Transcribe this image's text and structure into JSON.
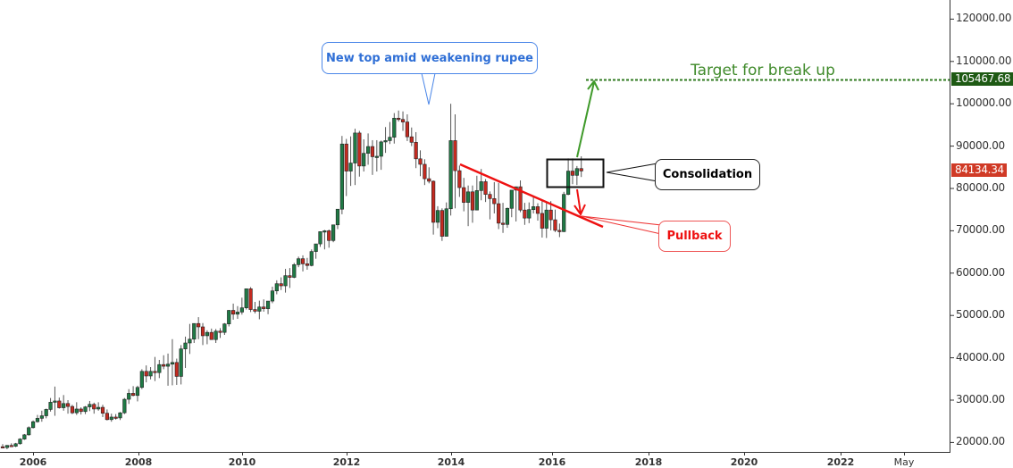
{
  "chart_data": {
    "type": "candlestick",
    "title": "",
    "xlabel": "",
    "ylabel": "",
    "ylim": [
      18000,
      124000
    ],
    "grid": false,
    "x_ticks": [
      "2006",
      "2008",
      "2010",
      "2012",
      "2014",
      "2016",
      "2018",
      "2020",
      "2022",
      "May"
    ],
    "y_ticks": [
      "120000.00",
      "110000.00",
      "100000.00",
      "90000.00",
      "80000.00",
      "70000.00",
      "60000.00",
      "50000.00",
      "40000.00",
      "30000.00",
      "20000.00"
    ],
    "period": "monthly",
    "start": "2005-06",
    "candles": [
      [
        19000,
        19600,
        18600,
        18800
      ],
      [
        18800,
        19400,
        18400,
        19300
      ],
      [
        19300,
        19800,
        19000,
        19100
      ],
      [
        19100,
        19900,
        18900,
        19700
      ],
      [
        19700,
        21000,
        19500,
        20800
      ],
      [
        20800,
        22000,
        20600,
        21800
      ],
      [
        21800,
        23800,
        21600,
        23500
      ],
      [
        23500,
        25200,
        23300,
        24900
      ],
      [
        24900,
        26500,
        24700,
        25700
      ],
      [
        25700,
        27500,
        24900,
        26300
      ],
      [
        26300,
        28000,
        25700,
        27800
      ],
      [
        27800,
        30500,
        27300,
        29500
      ],
      [
        29500,
        33200,
        26300,
        29800
      ],
      [
        29800,
        30600,
        28000,
        28200
      ],
      [
        28200,
        31200,
        27500,
        29200
      ],
      [
        29200,
        30000,
        26800,
        28500
      ],
      [
        28500,
        28900,
        26700,
        27000
      ],
      [
        27000,
        29500,
        26500,
        27900
      ],
      [
        27900,
        28300,
        26600,
        27300
      ],
      [
        27300,
        28600,
        26700,
        28400
      ],
      [
        28400,
        29800,
        27400,
        29000
      ],
      [
        29000,
        29400,
        26800,
        27900
      ],
      [
        27900,
        29500,
        27500,
        28300
      ],
      [
        28300,
        28900,
        26000,
        26900
      ],
      [
        26900,
        27800,
        25200,
        25400
      ],
      [
        25400,
        26800,
        24900,
        26000
      ],
      [
        26000,
        26700,
        25400,
        25800
      ],
      [
        25800,
        27200,
        25300,
        27000
      ],
      [
        27000,
        30500,
        26700,
        30200
      ],
      [
        30200,
        32600,
        29100,
        31600
      ],
      [
        31600,
        33300,
        30900,
        31100
      ],
      [
        31100,
        33400,
        29700,
        33000
      ],
      [
        33000,
        37300,
        32600,
        36800
      ],
      [
        36800,
        38200,
        34200,
        35700
      ],
      [
        35700,
        37800,
        34900,
        36800
      ],
      [
        36800,
        40200,
        34500,
        36500
      ],
      [
        36500,
        39500,
        35200,
        38400
      ],
      [
        38400,
        40600,
        37300,
        38000
      ],
      [
        38000,
        41000,
        33400,
        38500
      ],
      [
        38500,
        44400,
        33500,
        38900
      ],
      [
        38900,
        39800,
        33600,
        35600
      ],
      [
        35600,
        43000,
        33700,
        42100
      ],
      [
        42100,
        45000,
        37600,
        43500
      ],
      [
        43500,
        48000,
        40900,
        44400
      ],
      [
        44400,
        47400,
        43500,
        48100
      ],
      [
        48100,
        49600,
        44400,
        47300
      ],
      [
        47300,
        48200,
        43000,
        45200
      ],
      [
        45200,
        46500,
        43200,
        46000
      ],
      [
        46000,
        46900,
        44300,
        44300
      ],
      [
        44300,
        46800,
        43500,
        46300
      ],
      [
        46300,
        47000,
        44700,
        46000
      ],
      [
        46000,
        48200,
        45400,
        48000
      ],
      [
        48000,
        51300,
        47400,
        51200
      ],
      [
        51200,
        52800,
        49000,
        50300
      ],
      [
        50300,
        52200,
        49200,
        50800
      ],
      [
        50800,
        54200,
        50200,
        51800
      ],
      [
        51800,
        56300,
        51400,
        56300
      ],
      [
        56300,
        56700,
        50800,
        51400
      ],
      [
        51400,
        53200,
        50500,
        51000
      ],
      [
        51000,
        53500,
        49100,
        52000
      ],
      [
        52000,
        53800,
        50900,
        51600
      ],
      [
        51600,
        53200,
        50300,
        53400
      ],
      [
        53400,
        56800,
        52900,
        55800
      ],
      [
        55800,
        58300,
        55000,
        57500
      ],
      [
        57500,
        59000,
        56000,
        57000
      ],
      [
        57000,
        61000,
        55400,
        59400
      ],
      [
        59400,
        61200,
        56500,
        59000
      ],
      [
        59000,
        62400,
        58800,
        62000
      ],
      [
        62000,
        63900,
        61400,
        63400
      ],
      [
        63400,
        64200,
        60400,
        62200
      ],
      [
        62200,
        63600,
        60800,
        61800
      ],
      [
        61800,
        65600,
        61600,
        65100
      ],
      [
        65100,
        66300,
        63400,
        66900
      ],
      [
        66900,
        69000,
        66200,
        69800
      ],
      [
        69800,
        70200,
        65600,
        70000
      ],
      [
        70000,
        70300,
        66000,
        67700
      ],
      [
        67700,
        71200,
        67300,
        71400
      ],
      [
        71400,
        73400,
        70400,
        75100
      ],
      [
        75100,
        92400,
        73900,
        90500
      ],
      [
        90500,
        91700,
        78200,
        84100
      ],
      [
        84100,
        92300,
        80600,
        86000
      ],
      [
        86000,
        94100,
        80800,
        93100
      ],
      [
        93100,
        93600,
        82800,
        85300
      ],
      [
        85300,
        91600,
        84000,
        88300
      ],
      [
        88300,
        93000,
        85600,
        89900
      ],
      [
        89900,
        91400,
        83200,
        87500
      ],
      [
        87500,
        91400,
        84000,
        87600
      ],
      [
        87600,
        91300,
        84400,
        91000
      ],
      [
        91000,
        94500,
        88400,
        91300
      ],
      [
        91300,
        95700,
        90500,
        92100
      ],
      [
        92100,
        97800,
        90600,
        96600
      ],
      [
        96600,
        98400,
        95800,
        96300
      ],
      [
        96300,
        98200,
        93600,
        95700
      ],
      [
        95700,
        97500,
        91200,
        92200
      ],
      [
        92200,
        94400,
        90000,
        90900
      ],
      [
        90900,
        93300,
        84800,
        87000
      ],
      [
        87000,
        89000,
        82900,
        85700
      ],
      [
        85700,
        86900,
        80800,
        82300
      ],
      [
        82300,
        85000,
        81200,
        81700
      ],
      [
        81700,
        81900,
        69100,
        72000
      ],
      [
        72000,
        75800,
        70600,
        74800
      ],
      [
        74800,
        75300,
        67600,
        68700
      ],
      [
        68700,
        76700,
        70700,
        75200
      ],
      [
        75200,
        100000,
        73600,
        91300
      ],
      [
        91300,
        97500,
        75300,
        84200
      ],
      [
        84200,
        85400,
        78000,
        80200
      ],
      [
        80200,
        82500,
        74600,
        76700
      ],
      [
        76700,
        80700,
        71100,
        79200
      ],
      [
        79200,
        80700,
        71900,
        74900
      ],
      [
        74900,
        83000,
        74900,
        79500
      ],
      [
        79500,
        84600,
        77200,
        81600
      ],
      [
        81600,
        82200,
        76800,
        78600
      ],
      [
        78600,
        79300,
        72700,
        77600
      ],
      [
        77600,
        81500,
        74100,
        76400
      ],
      [
        76400,
        81300,
        70400,
        71800
      ],
      [
        71800,
        76600,
        69500,
        71500
      ],
      [
        71500,
        75500,
        70700,
        75300
      ],
      [
        75300,
        78800,
        73200,
        79600
      ],
      [
        79600,
        79900,
        72200,
        80400
      ],
      [
        80400,
        81900,
        74400,
        74900
      ],
      [
        74900,
        76600,
        71400,
        73000
      ],
      [
        73000,
        76700,
        71800,
        75000
      ],
      [
        75000,
        78300,
        74100,
        75700
      ],
      [
        75700,
        76500,
        72400,
        74100
      ],
      [
        74100,
        77000,
        68400,
        70600
      ],
      [
        70600,
        76600,
        68300,
        74900
      ],
      [
        74900,
        77000,
        70100,
        72600
      ],
      [
        72600,
        75000,
        69700,
        70100
      ],
      [
        70100,
        71700,
        68500,
        69800
      ],
      [
        69800,
        79200,
        69700,
        78600
      ],
      [
        78600,
        87100,
        78400,
        84100
      ],
      [
        84100,
        87100,
        81000,
        83100
      ],
      [
        83100,
        85300,
        80800,
        84700
      ],
      [
        84700,
        87600,
        82700,
        84134
      ]
    ],
    "annotations": [
      {
        "type": "callout",
        "text": "New top amid weakening rupee",
        "color": "#2f6fd6"
      },
      {
        "type": "hline",
        "text": "Target for break up",
        "value": 105467.68,
        "color": "#3f8a2a"
      },
      {
        "type": "box",
        "text": "Consolidation",
        "color": "#000000"
      },
      {
        "type": "callout",
        "text": "Pullback",
        "color": "#ee1111"
      },
      {
        "type": "trendline",
        "color": "#ee1111",
        "from": [
          "2014-03",
          85000
        ],
        "to": [
          "2016-12",
          71000
        ]
      }
    ],
    "last_price": 84134.34,
    "target_price": 105467.68
  },
  "axis": {
    "y_labels": [
      {
        "text": "120000.00",
        "value": 120000
      },
      {
        "text": "110000.00",
        "value": 110000
      },
      {
        "text": "100000.00",
        "value": 100000
      },
      {
        "text": "90000.00",
        "value": 90000
      },
      {
        "text": "80000.00",
        "value": 80000
      },
      {
        "text": "70000.00",
        "value": 70000
      },
      {
        "text": "60000.00",
        "value": 60000
      },
      {
        "text": "50000.00",
        "value": 50000
      },
      {
        "text": "40000.00",
        "value": 40000
      },
      {
        "text": "30000.00",
        "value": 30000
      },
      {
        "text": "20000.00",
        "value": 20000
      }
    ],
    "x_labels": [
      {
        "text": "2006",
        "x": 37,
        "bold": true
      },
      {
        "text": "2008",
        "x": 155,
        "bold": true
      },
      {
        "text": "2010",
        "x": 271,
        "bold": true
      },
      {
        "text": "2012",
        "x": 388,
        "bold": true
      },
      {
        "text": "2014",
        "x": 505,
        "bold": true
      },
      {
        "text": "2016",
        "x": 618,
        "bold": true
      },
      {
        "text": "2018",
        "x": 726,
        "bold": true
      },
      {
        "text": "2020",
        "x": 833,
        "bold": true
      },
      {
        "text": "2022",
        "x": 941,
        "bold": true
      },
      {
        "text": "May",
        "x": 1012,
        "bold": false
      }
    ]
  },
  "tags": {
    "target": {
      "text": "105467.68",
      "color": "#1e5a14"
    },
    "last": {
      "text": "84134.34",
      "color": "#d03a26"
    }
  },
  "labels": {
    "top_callout": "New top amid weakening rupee",
    "target": "Target for break up",
    "consolidation": "Consolidation",
    "pullback": "Pullback"
  },
  "colors": {
    "up": "#1f7a45",
    "down": "#c42a20",
    "wick": "#555555",
    "callout_blue": "#2f6fd6",
    "target_green": "#3f8a2a",
    "red": "#ee1111"
  }
}
